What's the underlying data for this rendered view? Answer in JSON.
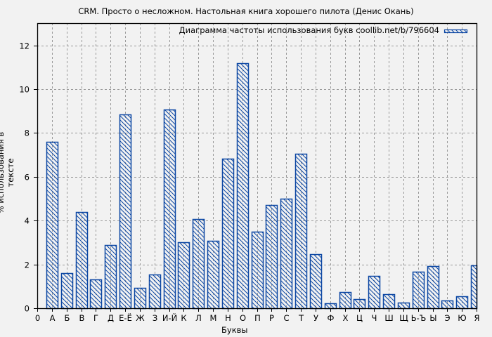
{
  "chart_data": {
    "type": "bar",
    "title": "CRM. Просто о несложном. Настольная книга хорошего пилота (Денис Окань)",
    "xlabel": "Буквы",
    "ylabel": "% использования в тексте",
    "legend": {
      "label": "Диаграмма частоты использования букв coollib.net/b/796604",
      "position": "top-right"
    },
    "grid": true,
    "ylim": [
      0,
      13
    ],
    "yticks": [
      0,
      2,
      4,
      6,
      8,
      10,
      12
    ],
    "xticks": [
      "0",
      "А",
      "Б",
      "В",
      "Г",
      "Д",
      "Е-Ё",
      "Ж",
      "З",
      "И-Й",
      "К",
      "Л",
      "М",
      "Н",
      "О",
      "П",
      "Р",
      "С",
      "Т",
      "У",
      "Ф",
      "Х",
      "Ц",
      "Ч",
      "Ш",
      "Щ",
      "Ь-Ъ",
      "Ы",
      "Э",
      "Ю",
      "Я"
    ],
    "categories": [
      "А",
      "Б",
      "В",
      "Г",
      "Д",
      "Е-Ё",
      "Ж",
      "З",
      "И-Й",
      "К",
      "Л",
      "М",
      "Н",
      "О",
      "П",
      "Р",
      "С",
      "Т",
      "У",
      "Ф",
      "Х",
      "Ц",
      "Ч",
      "Ш",
      "Щ",
      "Ь-Ъ",
      "Ы",
      "Э",
      "Ю",
      "Я"
    ],
    "values": [
      7.6,
      1.59,
      4.38,
      1.3,
      2.87,
      8.84,
      0.92,
      1.53,
      9.07,
      3.0,
      4.06,
      3.07,
      6.82,
      11.18,
      3.48,
      4.7,
      4.99,
      7.04,
      2.46,
      0.22,
      0.73,
      0.41,
      1.46,
      0.63,
      0.26,
      1.66,
      1.91,
      0.34,
      0.54,
      1.96
    ],
    "colors": {
      "bar_edge": "#0b46a3",
      "hatch": "#0b46a3",
      "grid": "#999999",
      "background": "#f2f2f2"
    }
  }
}
